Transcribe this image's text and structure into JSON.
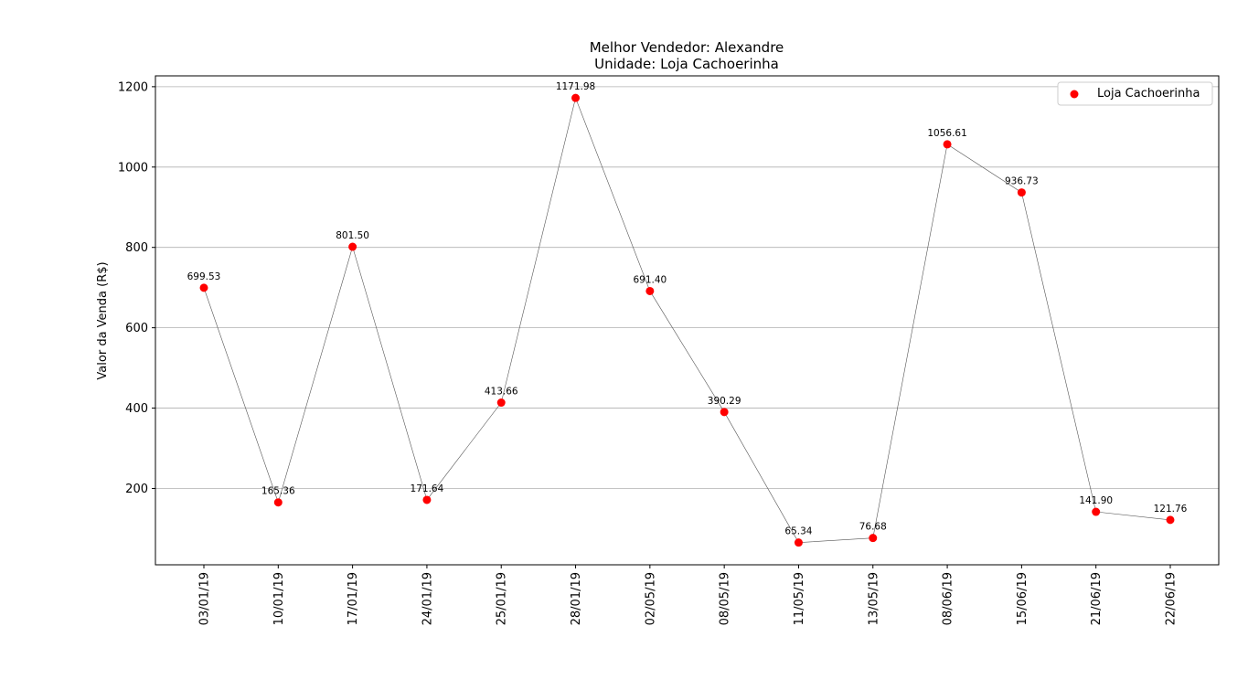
{
  "chart_data": {
    "type": "scatter",
    "title": "Melhor Vendedor:  Alexandre",
    "subtitle": "Unidade: Loja Cachoerinha",
    "xlabel": "",
    "ylabel": "Valor da Venda (R$)",
    "categories": [
      "03/01/19",
      "10/01/19",
      "17/01/19",
      "24/01/19",
      "25/01/19",
      "28/01/19",
      "02/05/19",
      "08/05/19",
      "11/05/19",
      "13/05/19",
      "08/06/19",
      "15/06/19",
      "21/06/19",
      "22/06/19"
    ],
    "series": [
      {
        "name": "Loja Cachoerinha",
        "color": "#ff0000",
        "values": [
          699.53,
          165.36,
          801.5,
          171.64,
          413.66,
          1171.98,
          691.4,
          390.29,
          65.34,
          76.68,
          1056.61,
          936.73,
          141.9,
          121.76
        ],
        "labels": [
          "699.53",
          "165.36",
          "801.50",
          "171.64",
          "413.66",
          "1171.98",
          "691.40",
          "390.29",
          "65.34",
          "76.68",
          "1056.61",
          "936.73",
          "141.90",
          "121.76"
        ]
      }
    ],
    "connecting_line_color": "#555555",
    "ylim": [
      10,
      1227
    ],
    "yticks": [
      200,
      400,
      600,
      800,
      1000,
      1200
    ],
    "grid": "horizontal",
    "legend_position": "top-right"
  }
}
